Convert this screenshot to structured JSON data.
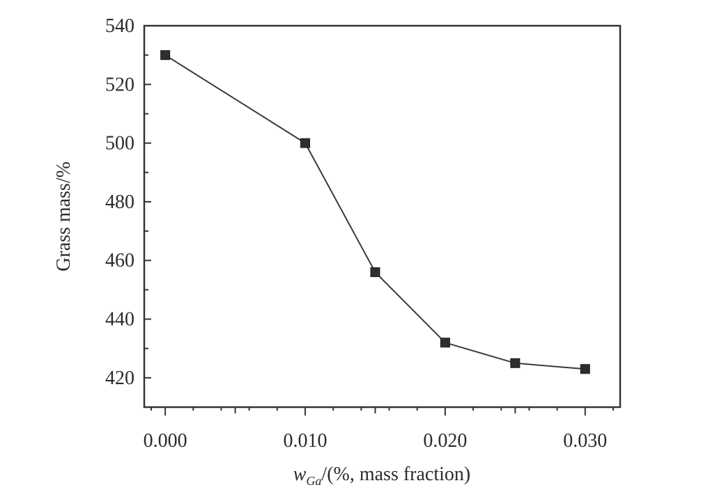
{
  "chart_data": {
    "type": "line",
    "title": "",
    "xlabel": {
      "var": "w",
      "sub": "Ga",
      "rest": "/(%, mass fraction)"
    },
    "ylabel": "Grass mass/%",
    "xlim": [
      -0.0015,
      0.0325
    ],
    "ylim": [
      410,
      540
    ],
    "x_ticks": [
      "0.000",
      "0.010",
      "0.020",
      "0.030"
    ],
    "y_ticks": [
      "420",
      "440",
      "460",
      "480",
      "500",
      "520",
      "540"
    ],
    "grid": false,
    "legend": "none",
    "series": [
      {
        "x": [
          0.0,
          0.01,
          0.015,
          0.02,
          0.025,
          0.03
        ],
        "y": [
          530,
          500,
          456,
          432,
          425,
          423
        ]
      }
    ],
    "colors": {
      "line": "#3a3a3a",
      "marker": "#2e2e2e",
      "axis": "#333333"
    }
  }
}
